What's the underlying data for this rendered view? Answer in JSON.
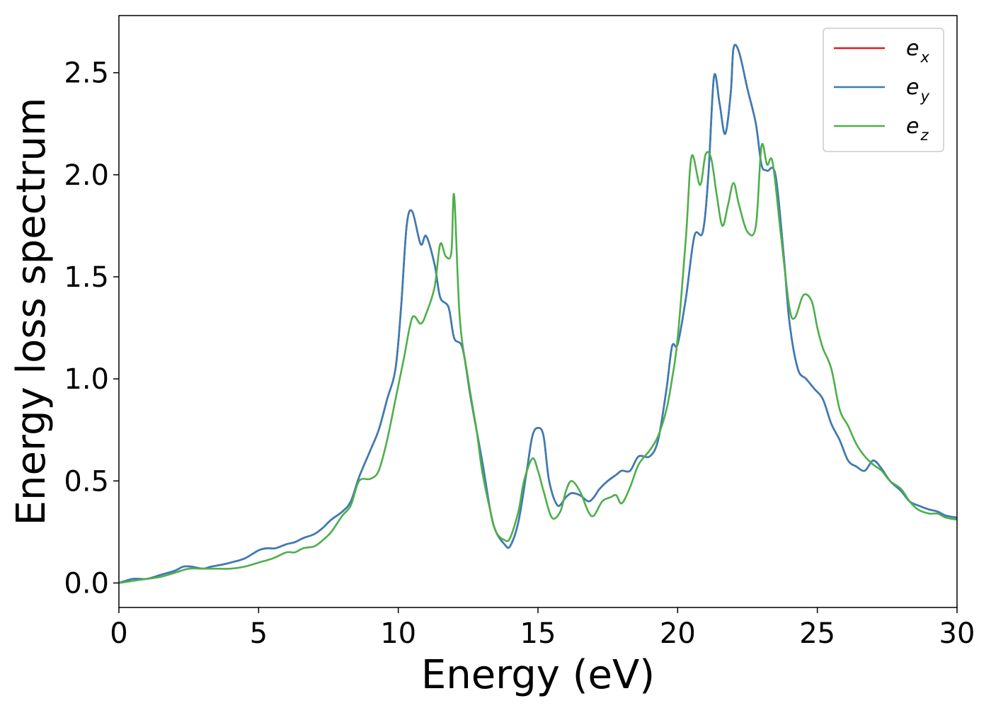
{
  "chart_data": {
    "type": "line",
    "title": "",
    "xlabel": "Energy (eV)",
    "ylabel": "Energy loss spectrum",
    "xlim": [
      0,
      30
    ],
    "ylim": [
      -0.12,
      2.78
    ],
    "xticks": [
      0,
      5,
      10,
      15,
      20,
      25,
      30
    ],
    "xtick_labels": [
      "0",
      "5",
      "10",
      "15",
      "20",
      "25",
      "30"
    ],
    "yticks": [
      0.0,
      0.5,
      1.0,
      1.5,
      2.0,
      2.5
    ],
    "ytick_labels": [
      "0.0",
      "0.5",
      "1.0",
      "1.5",
      "2.0",
      "2.5"
    ],
    "grid": false,
    "legend_position": "top-right",
    "series": [
      {
        "name": "e_x",
        "label_main": "e",
        "label_sub": "x",
        "color": "#e41a1c",
        "x": [
          0.0,
          0.5,
          1.0,
          1.5,
          2.0,
          2.3,
          2.6,
          3.0,
          3.3,
          3.7,
          4.0,
          4.5,
          5.0,
          5.3,
          5.6,
          6.0,
          6.3,
          6.6,
          7.0,
          7.3,
          7.6,
          8.0,
          8.3,
          8.6,
          9.0,
          9.3,
          9.6,
          9.9,
          10.1,
          10.3,
          10.5,
          10.8,
          11.0,
          11.3,
          11.5,
          11.8,
          12.0,
          12.3,
          12.6,
          13.0,
          13.3,
          13.5,
          13.8,
          14.0,
          14.3,
          14.6,
          14.8,
          15.0,
          15.2,
          15.4,
          15.7,
          16.0,
          16.2,
          16.5,
          16.8,
          17.0,
          17.2,
          17.5,
          17.8,
          18.0,
          18.3,
          18.6,
          19.0,
          19.3,
          19.6,
          19.8,
          20.0,
          20.3,
          20.6,
          20.9,
          21.1,
          21.3,
          21.5,
          21.7,
          21.9,
          22.0,
          22.2,
          22.5,
          22.8,
          23.0,
          23.2,
          23.5,
          23.8,
          24.0,
          24.3,
          24.6,
          24.9,
          25.2,
          25.5,
          25.8,
          26.1,
          26.4,
          26.7,
          27.0,
          27.3,
          27.6,
          28.0,
          28.3,
          28.6,
          29.0,
          29.3,
          29.6,
          30.0
        ],
        "y": [
          0.0,
          0.02,
          0.02,
          0.04,
          0.06,
          0.08,
          0.08,
          0.07,
          0.08,
          0.09,
          0.1,
          0.12,
          0.16,
          0.17,
          0.17,
          0.19,
          0.2,
          0.22,
          0.24,
          0.27,
          0.31,
          0.35,
          0.4,
          0.52,
          0.65,
          0.75,
          0.9,
          1.05,
          1.35,
          1.75,
          1.82,
          1.66,
          1.7,
          1.56,
          1.4,
          1.35,
          1.2,
          1.15,
          0.9,
          0.6,
          0.35,
          0.25,
          0.19,
          0.18,
          0.3,
          0.55,
          0.72,
          0.76,
          0.72,
          0.5,
          0.38,
          0.42,
          0.44,
          0.43,
          0.4,
          0.42,
          0.46,
          0.5,
          0.53,
          0.55,
          0.55,
          0.62,
          0.62,
          0.7,
          0.95,
          1.16,
          1.17,
          1.4,
          1.7,
          1.72,
          2.0,
          2.48,
          2.35,
          2.2,
          2.4,
          2.62,
          2.6,
          2.42,
          2.25,
          2.05,
          2.02,
          2.0,
          1.6,
          1.28,
          1.05,
          1.0,
          0.95,
          0.9,
          0.78,
          0.7,
          0.6,
          0.57,
          0.55,
          0.6,
          0.56,
          0.5,
          0.45,
          0.4,
          0.38,
          0.36,
          0.35,
          0.33,
          0.32
        ]
      },
      {
        "name": "e_y",
        "label_main": "e",
        "label_sub": "y",
        "color": "#377eb8",
        "x": [
          0.0,
          0.5,
          1.0,
          1.5,
          2.0,
          2.3,
          2.6,
          3.0,
          3.3,
          3.7,
          4.0,
          4.5,
          5.0,
          5.3,
          5.6,
          6.0,
          6.3,
          6.6,
          7.0,
          7.3,
          7.6,
          8.0,
          8.3,
          8.6,
          9.0,
          9.3,
          9.6,
          9.9,
          10.1,
          10.3,
          10.5,
          10.8,
          11.0,
          11.3,
          11.5,
          11.8,
          12.0,
          12.3,
          12.6,
          13.0,
          13.3,
          13.5,
          13.8,
          14.0,
          14.3,
          14.6,
          14.8,
          15.0,
          15.2,
          15.4,
          15.7,
          16.0,
          16.2,
          16.5,
          16.8,
          17.0,
          17.2,
          17.5,
          17.8,
          18.0,
          18.3,
          18.6,
          19.0,
          19.3,
          19.6,
          19.8,
          20.0,
          20.3,
          20.6,
          20.9,
          21.1,
          21.3,
          21.5,
          21.7,
          21.9,
          22.0,
          22.2,
          22.5,
          22.8,
          23.0,
          23.2,
          23.5,
          23.8,
          24.0,
          24.3,
          24.6,
          24.9,
          25.2,
          25.5,
          25.8,
          26.1,
          26.4,
          26.7,
          27.0,
          27.3,
          27.6,
          28.0,
          28.3,
          28.6,
          29.0,
          29.3,
          29.6,
          30.0
        ],
        "y": [
          0.0,
          0.02,
          0.02,
          0.04,
          0.06,
          0.08,
          0.08,
          0.07,
          0.08,
          0.09,
          0.1,
          0.12,
          0.16,
          0.17,
          0.17,
          0.19,
          0.2,
          0.22,
          0.24,
          0.27,
          0.31,
          0.35,
          0.4,
          0.52,
          0.65,
          0.75,
          0.9,
          1.05,
          1.35,
          1.75,
          1.82,
          1.66,
          1.7,
          1.56,
          1.4,
          1.35,
          1.2,
          1.15,
          0.9,
          0.6,
          0.35,
          0.25,
          0.19,
          0.18,
          0.3,
          0.55,
          0.72,
          0.76,
          0.72,
          0.5,
          0.38,
          0.42,
          0.44,
          0.43,
          0.4,
          0.42,
          0.46,
          0.5,
          0.53,
          0.55,
          0.55,
          0.62,
          0.62,
          0.7,
          0.95,
          1.16,
          1.17,
          1.4,
          1.7,
          1.72,
          2.0,
          2.48,
          2.35,
          2.2,
          2.4,
          2.62,
          2.6,
          2.42,
          2.25,
          2.05,
          2.02,
          2.0,
          1.6,
          1.28,
          1.05,
          1.0,
          0.95,
          0.9,
          0.78,
          0.7,
          0.6,
          0.57,
          0.55,
          0.6,
          0.56,
          0.5,
          0.45,
          0.4,
          0.38,
          0.36,
          0.35,
          0.33,
          0.32
        ]
      },
      {
        "name": "e_z",
        "label_main": "e",
        "label_sub": "z",
        "color": "#4daf4a",
        "x": [
          0.0,
          0.5,
          1.0,
          1.5,
          2.0,
          2.5,
          3.0,
          3.5,
          4.0,
          4.5,
          5.0,
          5.5,
          6.0,
          6.3,
          6.6,
          7.0,
          7.3,
          7.6,
          8.0,
          8.3,
          8.6,
          9.0,
          9.3,
          9.6,
          9.9,
          10.2,
          10.5,
          10.8,
          11.0,
          11.3,
          11.5,
          11.7,
          11.9,
          12.0,
          12.2,
          12.5,
          12.8,
          13.0,
          13.3,
          13.5,
          13.8,
          14.0,
          14.3,
          14.5,
          14.8,
          15.0,
          15.2,
          15.5,
          15.8,
          16.0,
          16.2,
          16.5,
          16.8,
          17.0,
          17.3,
          17.6,
          17.8,
          18.0,
          18.3,
          18.6,
          19.0,
          19.3,
          19.6,
          19.8,
          20.0,
          20.3,
          20.5,
          20.8,
          21.0,
          21.2,
          21.4,
          21.6,
          21.8,
          22.0,
          22.2,
          22.5,
          22.8,
          23.0,
          23.2,
          23.4,
          23.7,
          24.0,
          24.2,
          24.5,
          24.8,
          25.0,
          25.2,
          25.5,
          25.8,
          26.1,
          26.4,
          26.7,
          27.0,
          27.3,
          27.6,
          28.0,
          28.3,
          28.6,
          29.0,
          29.3,
          29.6,
          30.0
        ],
        "y": [
          0.0,
          0.01,
          0.02,
          0.03,
          0.05,
          0.07,
          0.07,
          0.07,
          0.07,
          0.08,
          0.1,
          0.12,
          0.15,
          0.15,
          0.17,
          0.18,
          0.21,
          0.25,
          0.33,
          0.38,
          0.5,
          0.51,
          0.55,
          0.7,
          0.9,
          1.1,
          1.3,
          1.27,
          1.32,
          1.45,
          1.66,
          1.6,
          1.62,
          1.9,
          1.3,
          1.0,
          0.75,
          0.55,
          0.35,
          0.25,
          0.21,
          0.22,
          0.35,
          0.5,
          0.61,
          0.55,
          0.45,
          0.32,
          0.35,
          0.45,
          0.5,
          0.45,
          0.35,
          0.33,
          0.4,
          0.42,
          0.43,
          0.39,
          0.47,
          0.58,
          0.65,
          0.72,
          0.85,
          1.0,
          1.2,
          1.7,
          2.09,
          1.95,
          2.1,
          2.08,
          1.9,
          1.75,
          1.85,
          1.96,
          1.85,
          1.72,
          1.75,
          2.14,
          2.05,
          2.06,
          1.7,
          1.35,
          1.3,
          1.41,
          1.38,
          1.25,
          1.15,
          1.05,
          0.85,
          0.77,
          0.68,
          0.62,
          0.58,
          0.55,
          0.5,
          0.46,
          0.4,
          0.36,
          0.34,
          0.34,
          0.32,
          0.31
        ]
      }
    ]
  }
}
